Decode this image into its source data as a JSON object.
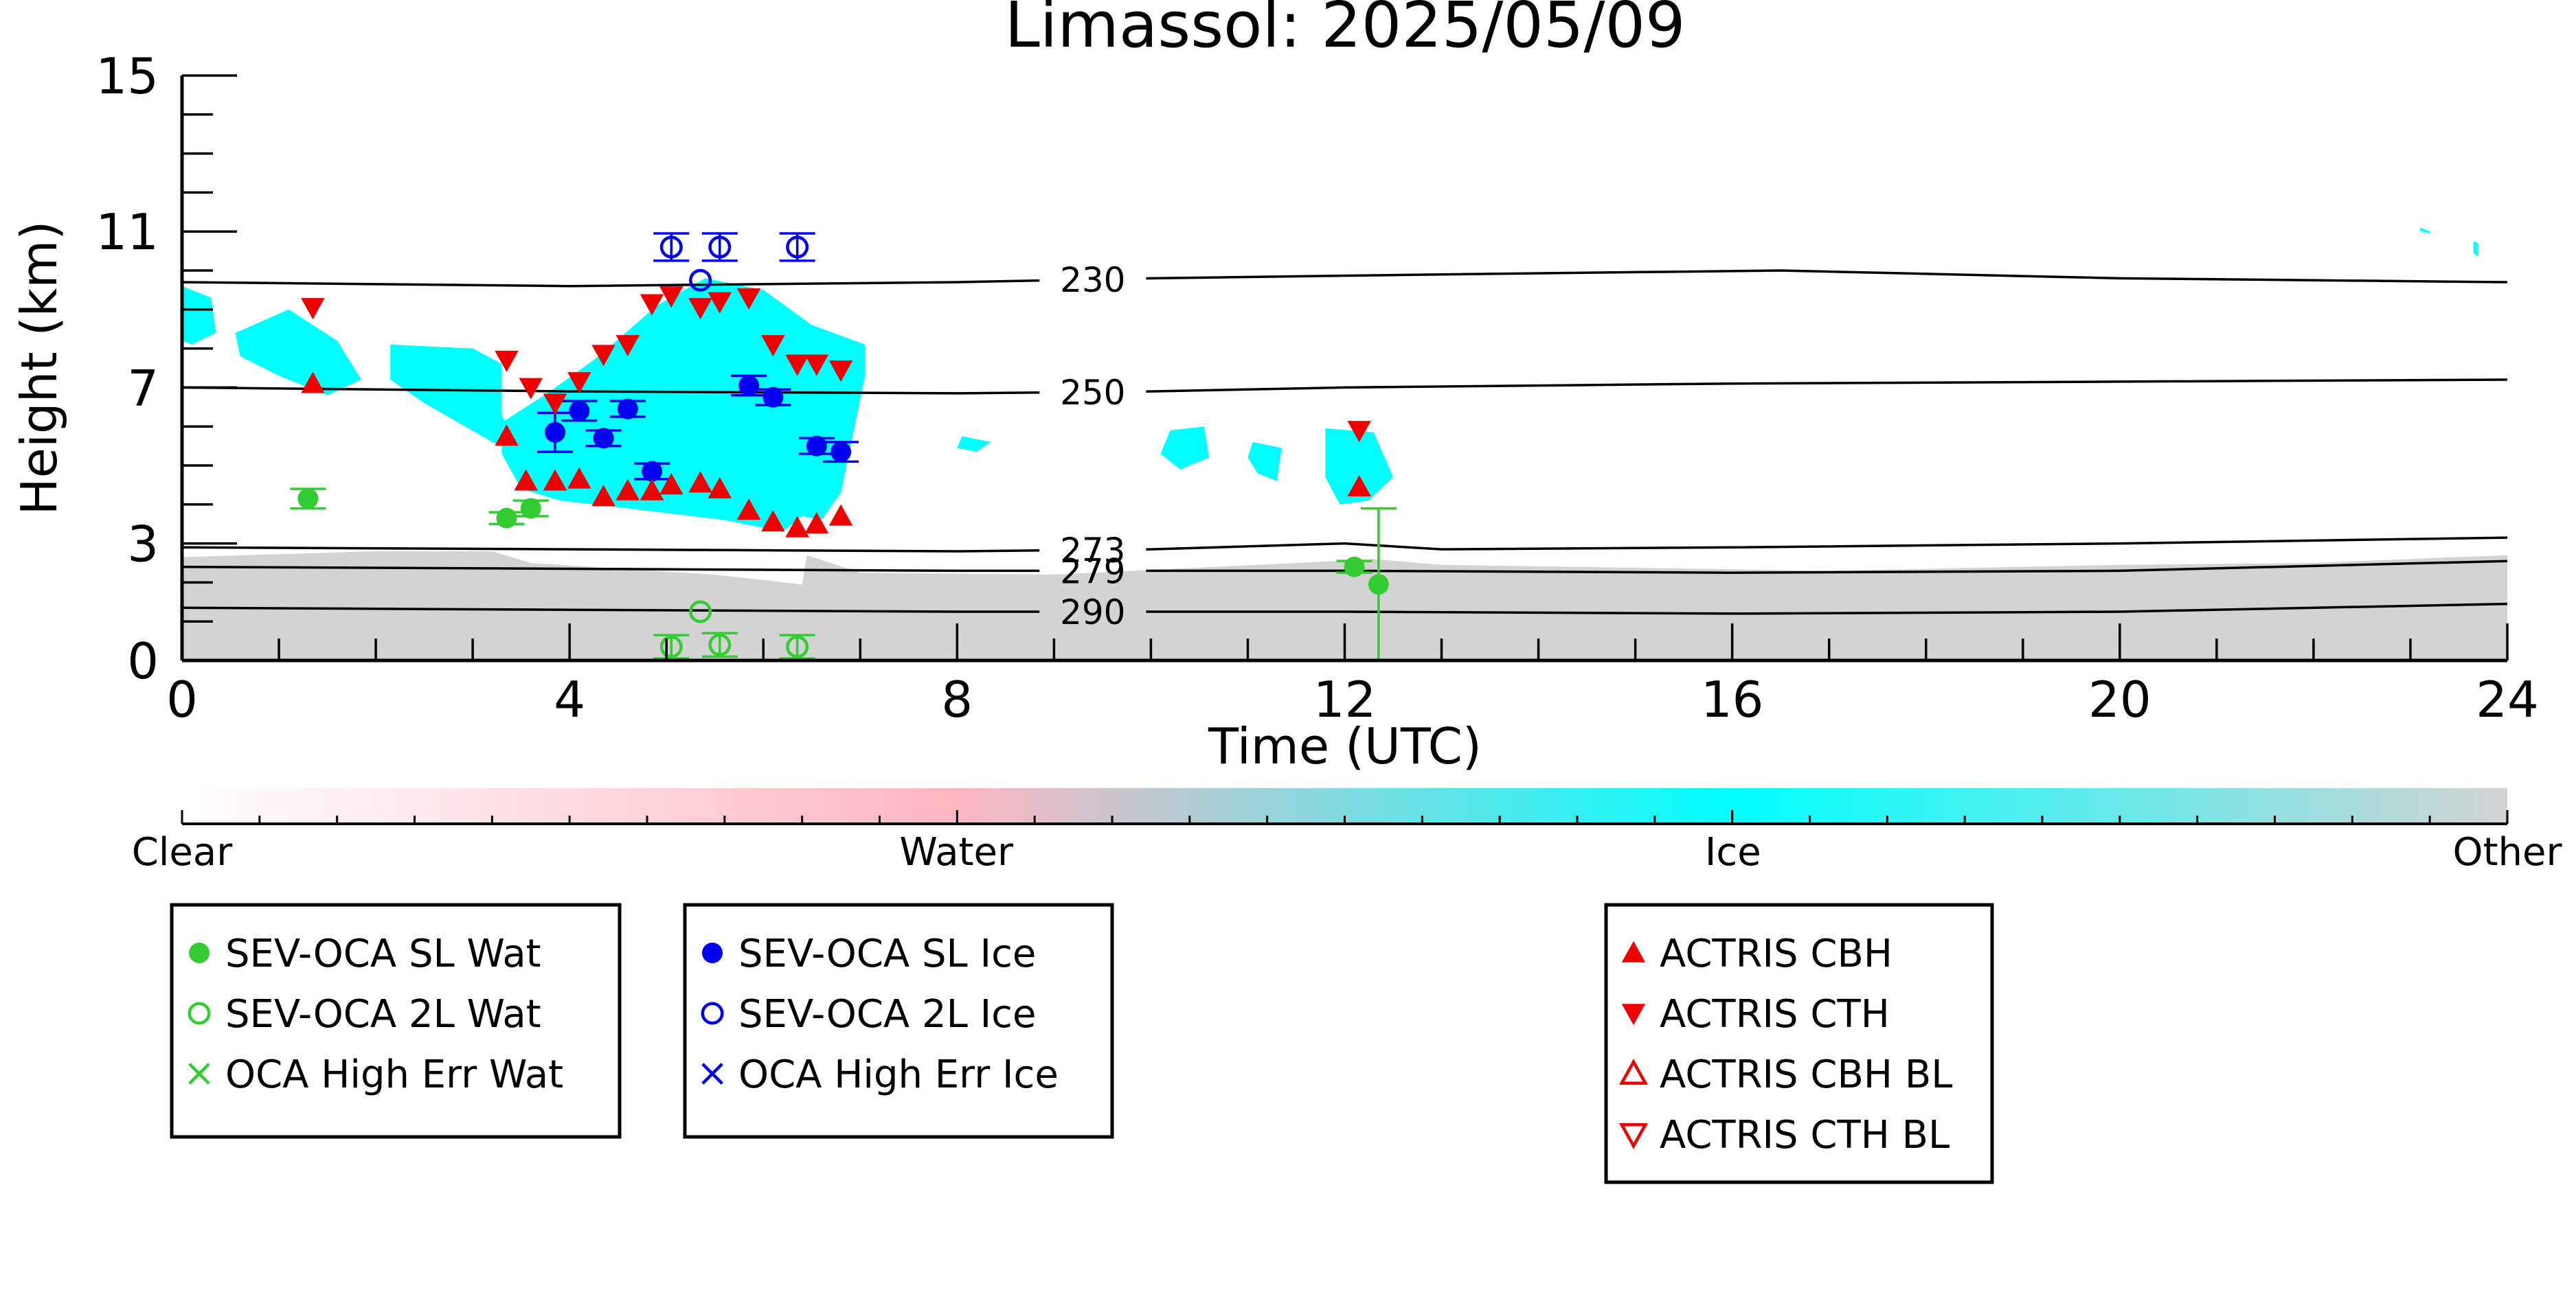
{
  "chart_data": {
    "type": "scatter",
    "title": "Limassol: 2025/05/09",
    "xlabel": "Time (UTC)",
    "ylabel": "Height (km)",
    "xlim": [
      0,
      24
    ],
    "ylim": [
      0,
      15
    ],
    "xticks": [
      0,
      4,
      8,
      12,
      16,
      20,
      24
    ],
    "yticks": [
      0,
      3,
      7,
      11,
      15
    ],
    "colorbar": {
      "labels": [
        {
          "text": "Clear",
          "pos": 0.0
        },
        {
          "text": "Water",
          "pos": 0.333
        },
        {
          "text": "Ice",
          "pos": 0.667
        },
        {
          "text": "Other",
          "pos": 1.0
        }
      ],
      "colors": [
        "#ffffff",
        "#ffb6c1",
        "#00ffff",
        "#d3d3d3"
      ]
    },
    "colors": {
      "water": "#33cc33",
      "ice": "#0000ee",
      "actris": "#ee0000",
      "cloud_ice": "#00ffff",
      "cloud_other": "#d3d3d3"
    },
    "isotherms": [
      {
        "label": "230",
        "label_x": 9.4,
        "points": [
          [
            0,
            9.7
          ],
          [
            4,
            9.6
          ],
          [
            8,
            9.7
          ],
          [
            10,
            9.8
          ],
          [
            13,
            9.9
          ],
          [
            16.5,
            10.0
          ],
          [
            20,
            9.8
          ],
          [
            24,
            9.7
          ]
        ]
      },
      {
        "label": "250",
        "label_x": 9.4,
        "points": [
          [
            0,
            7.0
          ],
          [
            4,
            6.9
          ],
          [
            8,
            6.85
          ],
          [
            10,
            6.9
          ],
          [
            12,
            7.0
          ],
          [
            16,
            7.1
          ],
          [
            20,
            7.15
          ],
          [
            24,
            7.2
          ]
        ]
      },
      {
        "label": "273",
        "label_x": 9.4,
        "points": [
          [
            0,
            2.9
          ],
          [
            4,
            2.85
          ],
          [
            8,
            2.8
          ],
          [
            10,
            2.85
          ],
          [
            12,
            3.0
          ],
          [
            13,
            2.85
          ],
          [
            16,
            2.9
          ],
          [
            20,
            3.0
          ],
          [
            24,
            3.15
          ]
        ]
      },
      {
        "label": "279",
        "label_x": 9.4,
        "points": [
          [
            0,
            2.4
          ],
          [
            4,
            2.35
          ],
          [
            8,
            2.3
          ],
          [
            12,
            2.3
          ],
          [
            16,
            2.25
          ],
          [
            20,
            2.3
          ],
          [
            24,
            2.55
          ]
        ]
      },
      {
        "label": "290",
        "label_x": 9.4,
        "points": [
          [
            0,
            1.35
          ],
          [
            4,
            1.3
          ],
          [
            8,
            1.25
          ],
          [
            12,
            1.25
          ],
          [
            16,
            1.2
          ],
          [
            20,
            1.25
          ],
          [
            24,
            1.45
          ]
        ]
      }
    ],
    "series": [
      {
        "name": "SEV-OCA SL Wat",
        "marker": "circle-filled",
        "color": "#33cc33",
        "points": [
          {
            "x": 1.3,
            "y": 4.15,
            "err": 0.25
          },
          {
            "x": 3.35,
            "y": 3.65,
            "err": 0.15
          },
          {
            "x": 3.6,
            "y": 3.9,
            "err": 0.2
          },
          {
            "x": 12.1,
            "y": 2.4,
            "err": 0.15
          },
          {
            "x": 12.35,
            "y": 1.95,
            "err_lo": 1.95,
            "err_hi": 1.95
          }
        ]
      },
      {
        "name": "SEV-OCA 2L Wat",
        "marker": "circle-open",
        "color": "#33cc33",
        "points": [
          {
            "x": 5.05,
            "y": 0.35,
            "err": 0.3
          },
          {
            "x": 5.35,
            "y": 1.25,
            "err": 0.0
          },
          {
            "x": 5.55,
            "y": 0.4,
            "err": 0.3
          },
          {
            "x": 6.35,
            "y": 0.35,
            "err": 0.3
          }
        ]
      },
      {
        "name": "OCA High Err Wat",
        "marker": "cross",
        "color": "#33cc33",
        "points": []
      },
      {
        "name": "SEV-OCA SL Ice",
        "marker": "circle-filled",
        "color": "#0000ee",
        "points": [
          {
            "x": 3.85,
            "y": 5.85,
            "err": 0.5
          },
          {
            "x": 4.1,
            "y": 6.4,
            "err": 0.25
          },
          {
            "x": 4.35,
            "y": 5.7,
            "err": 0.2
          },
          {
            "x": 4.6,
            "y": 6.45,
            "err": 0.2
          },
          {
            "x": 4.85,
            "y": 4.85,
            "err": 0.2
          },
          {
            "x": 5.85,
            "y": 7.05,
            "err": 0.25
          },
          {
            "x": 6.1,
            "y": 6.75,
            "err": 0.2
          },
          {
            "x": 6.55,
            "y": 5.5,
            "err": 0.2
          },
          {
            "x": 6.8,
            "y": 5.35,
            "err": 0.25
          }
        ]
      },
      {
        "name": "SEV-OCA 2L Ice",
        "marker": "circle-open",
        "color": "#0000ee",
        "points": [
          {
            "x": 5.05,
            "y": 10.6,
            "err": 0.35
          },
          {
            "x": 5.35,
            "y": 9.75,
            "err": 0.0
          },
          {
            "x": 5.55,
            "y": 10.6,
            "err": 0.35
          },
          {
            "x": 6.35,
            "y": 10.6,
            "err": 0.35
          }
        ]
      },
      {
        "name": "OCA High Err Ice",
        "marker": "cross",
        "color": "#0000ee",
        "points": []
      },
      {
        "name": "ACTRIS CBH",
        "marker": "triangle-up-filled",
        "color": "#ee0000",
        "points": [
          {
            "x": 1.35,
            "y": 7.1
          },
          {
            "x": 3.35,
            "y": 5.75
          },
          {
            "x": 3.55,
            "y": 4.6
          },
          {
            "x": 3.85,
            "y": 4.6
          },
          {
            "x": 4.1,
            "y": 4.65
          },
          {
            "x": 4.35,
            "y": 4.2
          },
          {
            "x": 4.6,
            "y": 4.35
          },
          {
            "x": 4.85,
            "y": 4.35
          },
          {
            "x": 5.05,
            "y": 4.5
          },
          {
            "x": 5.35,
            "y": 4.55
          },
          {
            "x": 5.55,
            "y": 4.4
          },
          {
            "x": 5.85,
            "y": 3.85
          },
          {
            "x": 6.1,
            "y": 3.55
          },
          {
            "x": 6.35,
            "y": 3.4
          },
          {
            "x": 6.55,
            "y": 3.5
          },
          {
            "x": 6.8,
            "y": 3.7
          },
          {
            "x": 12.15,
            "y": 4.45
          }
        ]
      },
      {
        "name": "ACTRIS CTH",
        "marker": "triangle-down-filled",
        "color": "#ee0000",
        "points": [
          {
            "x": 1.35,
            "y": 9.05
          },
          {
            "x": 3.35,
            "y": 7.7
          },
          {
            "x": 3.6,
            "y": 7.0
          },
          {
            "x": 3.85,
            "y": 6.6
          },
          {
            "x": 4.1,
            "y": 7.15
          },
          {
            "x": 4.35,
            "y": 7.85
          },
          {
            "x": 4.6,
            "y": 8.1
          },
          {
            "x": 4.85,
            "y": 9.15
          },
          {
            "x": 5.05,
            "y": 9.35
          },
          {
            "x": 5.35,
            "y": 9.05
          },
          {
            "x": 5.55,
            "y": 9.2
          },
          {
            "x": 5.85,
            "y": 9.3
          },
          {
            "x": 6.1,
            "y": 8.1
          },
          {
            "x": 6.35,
            "y": 7.6
          },
          {
            "x": 6.55,
            "y": 7.6
          },
          {
            "x": 6.8,
            "y": 7.45
          },
          {
            "x": 12.15,
            "y": 5.9
          }
        ]
      },
      {
        "name": "ACTRIS CBH BL",
        "marker": "triangle-up-open",
        "color": "#ee0000",
        "points": []
      },
      {
        "name": "ACTRIS CTH BL",
        "marker": "triangle-down-open",
        "color": "#ee0000",
        "points": []
      }
    ],
    "cloud_regions": {
      "ice": [
        [
          [
            0,
            9.6
          ],
          [
            0.3,
            9.3
          ],
          [
            0.35,
            8.4
          ],
          [
            0.1,
            8.1
          ],
          [
            0,
            8.2
          ]
        ],
        [
          [
            0.55,
            8.4
          ],
          [
            1.1,
            9.0
          ],
          [
            1.6,
            8.2
          ],
          [
            1.85,
            7.2
          ],
          [
            1.5,
            6.8
          ],
          [
            1.0,
            7.3
          ],
          [
            0.6,
            7.8
          ]
        ],
        [
          [
            2.15,
            8.1
          ],
          [
            3.0,
            8.0
          ],
          [
            3.3,
            7.6
          ],
          [
            3.3,
            6.3
          ],
          [
            3.5,
            5.3
          ],
          [
            3.2,
            5.6
          ],
          [
            2.5,
            6.6
          ],
          [
            2.15,
            7.2
          ]
        ],
        [
          [
            3.3,
            6.1
          ],
          [
            3.8,
            6.9
          ],
          [
            4.3,
            7.8
          ],
          [
            4.9,
            9.1
          ],
          [
            5.4,
            9.8
          ],
          [
            6.0,
            9.5
          ],
          [
            6.5,
            8.6
          ],
          [
            7.05,
            8.1
          ],
          [
            7.05,
            7.3
          ],
          [
            6.8,
            4.3
          ],
          [
            6.6,
            3.6
          ],
          [
            6.4,
            3.7
          ],
          [
            6.2,
            3.3
          ],
          [
            5.6,
            3.6
          ],
          [
            4.6,
            3.9
          ],
          [
            3.9,
            4.1
          ],
          [
            3.5,
            4.4
          ],
          [
            3.3,
            5.3
          ]
        ],
        [
          [
            8.05,
            5.75
          ],
          [
            8.35,
            5.6
          ],
          [
            8.2,
            5.35
          ],
          [
            8.0,
            5.45
          ]
        ],
        [
          [
            10.2,
            5.9
          ],
          [
            10.55,
            6.0
          ],
          [
            10.6,
            5.2
          ],
          [
            10.3,
            4.9
          ],
          [
            10.1,
            5.3
          ]
        ],
        [
          [
            11.05,
            5.6
          ],
          [
            11.35,
            5.45
          ],
          [
            11.3,
            4.6
          ],
          [
            11.1,
            4.8
          ],
          [
            11.0,
            5.2
          ]
        ],
        [
          [
            11.8,
            5.95
          ],
          [
            12.3,
            5.85
          ],
          [
            12.5,
            4.7
          ],
          [
            12.25,
            4.1
          ],
          [
            11.95,
            4.0
          ],
          [
            11.8,
            4.7
          ]
        ],
        [
          [
            23.1,
            11.1
          ],
          [
            23.2,
            11.0
          ],
          [
            23.2,
            10.95
          ],
          [
            23.1,
            11.0
          ]
        ],
        [
          [
            23.65,
            10.75
          ],
          [
            23.7,
            10.7
          ],
          [
            23.7,
            10.35
          ],
          [
            23.65,
            10.45
          ]
        ]
      ],
      "other": [
        [
          [
            0,
            2.65
          ],
          [
            2.0,
            2.8
          ],
          [
            3.2,
            2.8
          ],
          [
            3.6,
            2.5
          ],
          [
            5.5,
            2.2
          ],
          [
            6.4,
            1.95
          ],
          [
            6.45,
            2.7
          ],
          [
            7.0,
            2.25
          ],
          [
            9.0,
            2.2
          ],
          [
            11.5,
            2.5
          ],
          [
            12.3,
            2.6
          ],
          [
            13.0,
            2.45
          ],
          [
            17.0,
            2.3
          ],
          [
            20.0,
            2.45
          ],
          [
            22.0,
            2.5
          ],
          [
            24,
            2.7
          ],
          [
            24,
            0
          ],
          [
            0,
            0
          ]
        ],
        [
          [
            11.8,
            5.3
          ],
          [
            12.25,
            5.45
          ],
          [
            12.45,
            5.1
          ],
          [
            12.3,
            4.4
          ],
          [
            12.0,
            4.5
          ]
        ]
      ]
    }
  },
  "legend": {
    "boxes": [
      {
        "name": "water",
        "entries": [
          {
            "label": "SEV-OCA SL Wat",
            "marker": "circle-filled",
            "color": "#33cc33"
          },
          {
            "label": "SEV-OCA 2L Wat",
            "marker": "circle-open",
            "color": "#33cc33"
          },
          {
            "label": "OCA High Err Wat",
            "marker": "cross",
            "color": "#33cc33"
          }
        ]
      },
      {
        "name": "ice",
        "entries": [
          {
            "label": "SEV-OCA SL Ice",
            "marker": "circle-filled",
            "color": "#0000ee"
          },
          {
            "label": "SEV-OCA 2L Ice",
            "marker": "circle-open",
            "color": "#0000ee"
          },
          {
            "label": "OCA High Err Ice",
            "marker": "cross",
            "color": "#0000ee"
          }
        ]
      },
      {
        "name": "actris",
        "entries": [
          {
            "label": "ACTRIS CBH",
            "marker": "triangle-up-filled",
            "color": "#ee0000"
          },
          {
            "label": "ACTRIS CTH",
            "marker": "triangle-down-filled",
            "color": "#ee0000"
          },
          {
            "label": "ACTRIS CBH BL",
            "marker": "triangle-up-open",
            "color": "#ee0000"
          },
          {
            "label": "ACTRIS CTH BL",
            "marker": "triangle-down-open",
            "color": "#ee0000"
          }
        ]
      }
    ]
  }
}
